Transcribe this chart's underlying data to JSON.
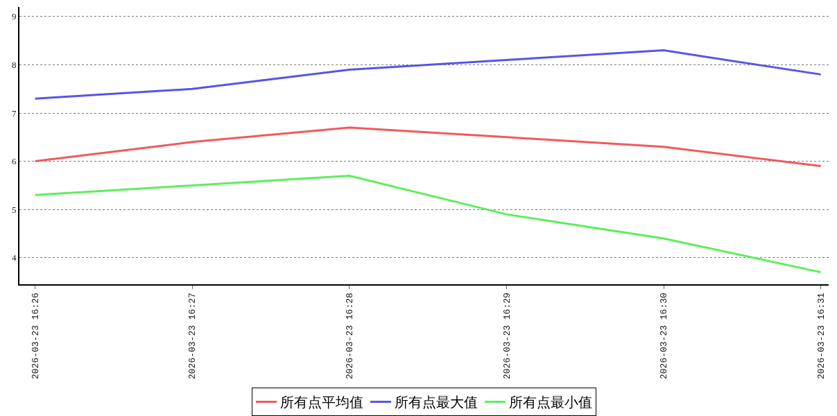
{
  "chart_data": {
    "type": "line",
    "categories": [
      "2026-03-23 16:26",
      "2026-03-23 16:27",
      "2026-03-23 16:28",
      "2026-03-23 16:29",
      "2026-03-23 16:30",
      "2026-03-23 16:31"
    ],
    "series": [
      {
        "name": "所有点平均值",
        "color": "#f05a5a",
        "values": [
          6.0,
          6.4,
          6.7,
          6.5,
          6.3,
          5.9
        ]
      },
      {
        "name": "所有点最大值",
        "color": "#5555e8",
        "values": [
          7.3,
          7.5,
          7.9,
          8.1,
          8.3,
          7.8
        ]
      },
      {
        "name": "所有点最小值",
        "color": "#5af05a",
        "values": [
          5.3,
          5.5,
          5.7,
          4.9,
          4.4,
          3.7
        ]
      }
    ],
    "ylim": [
      3.45,
      9.2
    ],
    "yticks": [
      4,
      5,
      6,
      7,
      8,
      9
    ],
    "grid": "y",
    "legend": "bottom",
    "marker": "none",
    "line_style": "solid"
  }
}
